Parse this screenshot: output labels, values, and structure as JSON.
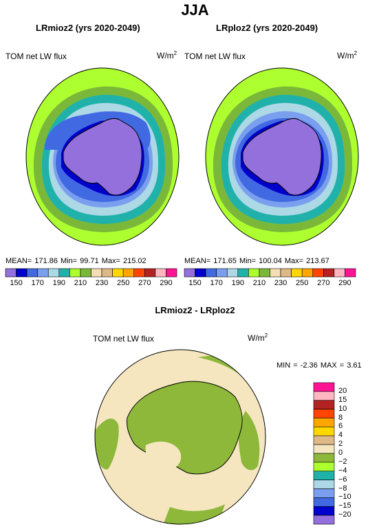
{
  "page": {
    "title": "JJA"
  },
  "panels": [
    {
      "title": "LRmioz2 (yrs 2020-2049)",
      "variable": "TOM net LW flux",
      "units_base": "W/m",
      "units_exp": "2",
      "stats": "MEAN= 171.86 Min= 99.71 Max= 215.02"
    },
    {
      "title": "LRploz2 (yrs 2020-2049)",
      "variable": "TOM net LW flux",
      "units_base": "W/m",
      "units_exp": "2",
      "stats": "MEAN= 171.65 Min= 100.04 Max= 213.67"
    }
  ],
  "colorbar_top": {
    "colors": [
      "#9370DB",
      "#0000CD",
      "#4169E1",
      "#7B9FEF",
      "#ADD8E6",
      "#20B2AA",
      "#ADFF2F",
      "#7BB83A",
      "#F5DEB3",
      "#DEB887",
      "#FFD700",
      "#FFA500",
      "#FF4500",
      "#B22222",
      "#FFB6C1",
      "#FF1493"
    ],
    "labels": [
      "150",
      "170",
      "190",
      "210",
      "230",
      "250",
      "270",
      "290"
    ]
  },
  "diff": {
    "title": "LRmioz2 - LRploz2",
    "variable": "TOM net LW flux",
    "units_base": "W/m",
    "units_exp": "2",
    "minmax": "MIN = -2.36 MAX = 3.61"
  },
  "colorbar_diff": {
    "colors": [
      "#FF1493",
      "#FFB6C1",
      "#B22222",
      "#FF4500",
      "#FFA500",
      "#FFD700",
      "#DEB887",
      "#F5E6C0",
      "#8DB83A",
      "#ADFF2F",
      "#20B2AA",
      "#ADD8E6",
      "#7B9FEF",
      "#4169E1",
      "#0000CD",
      "#9370DB"
    ],
    "labels": [
      "20",
      "15",
      "10",
      "8",
      "6",
      "4",
      "2",
      "0",
      "−2",
      "−4",
      "−6",
      "−8",
      "−10",
      "−15",
      "−20"
    ]
  }
}
